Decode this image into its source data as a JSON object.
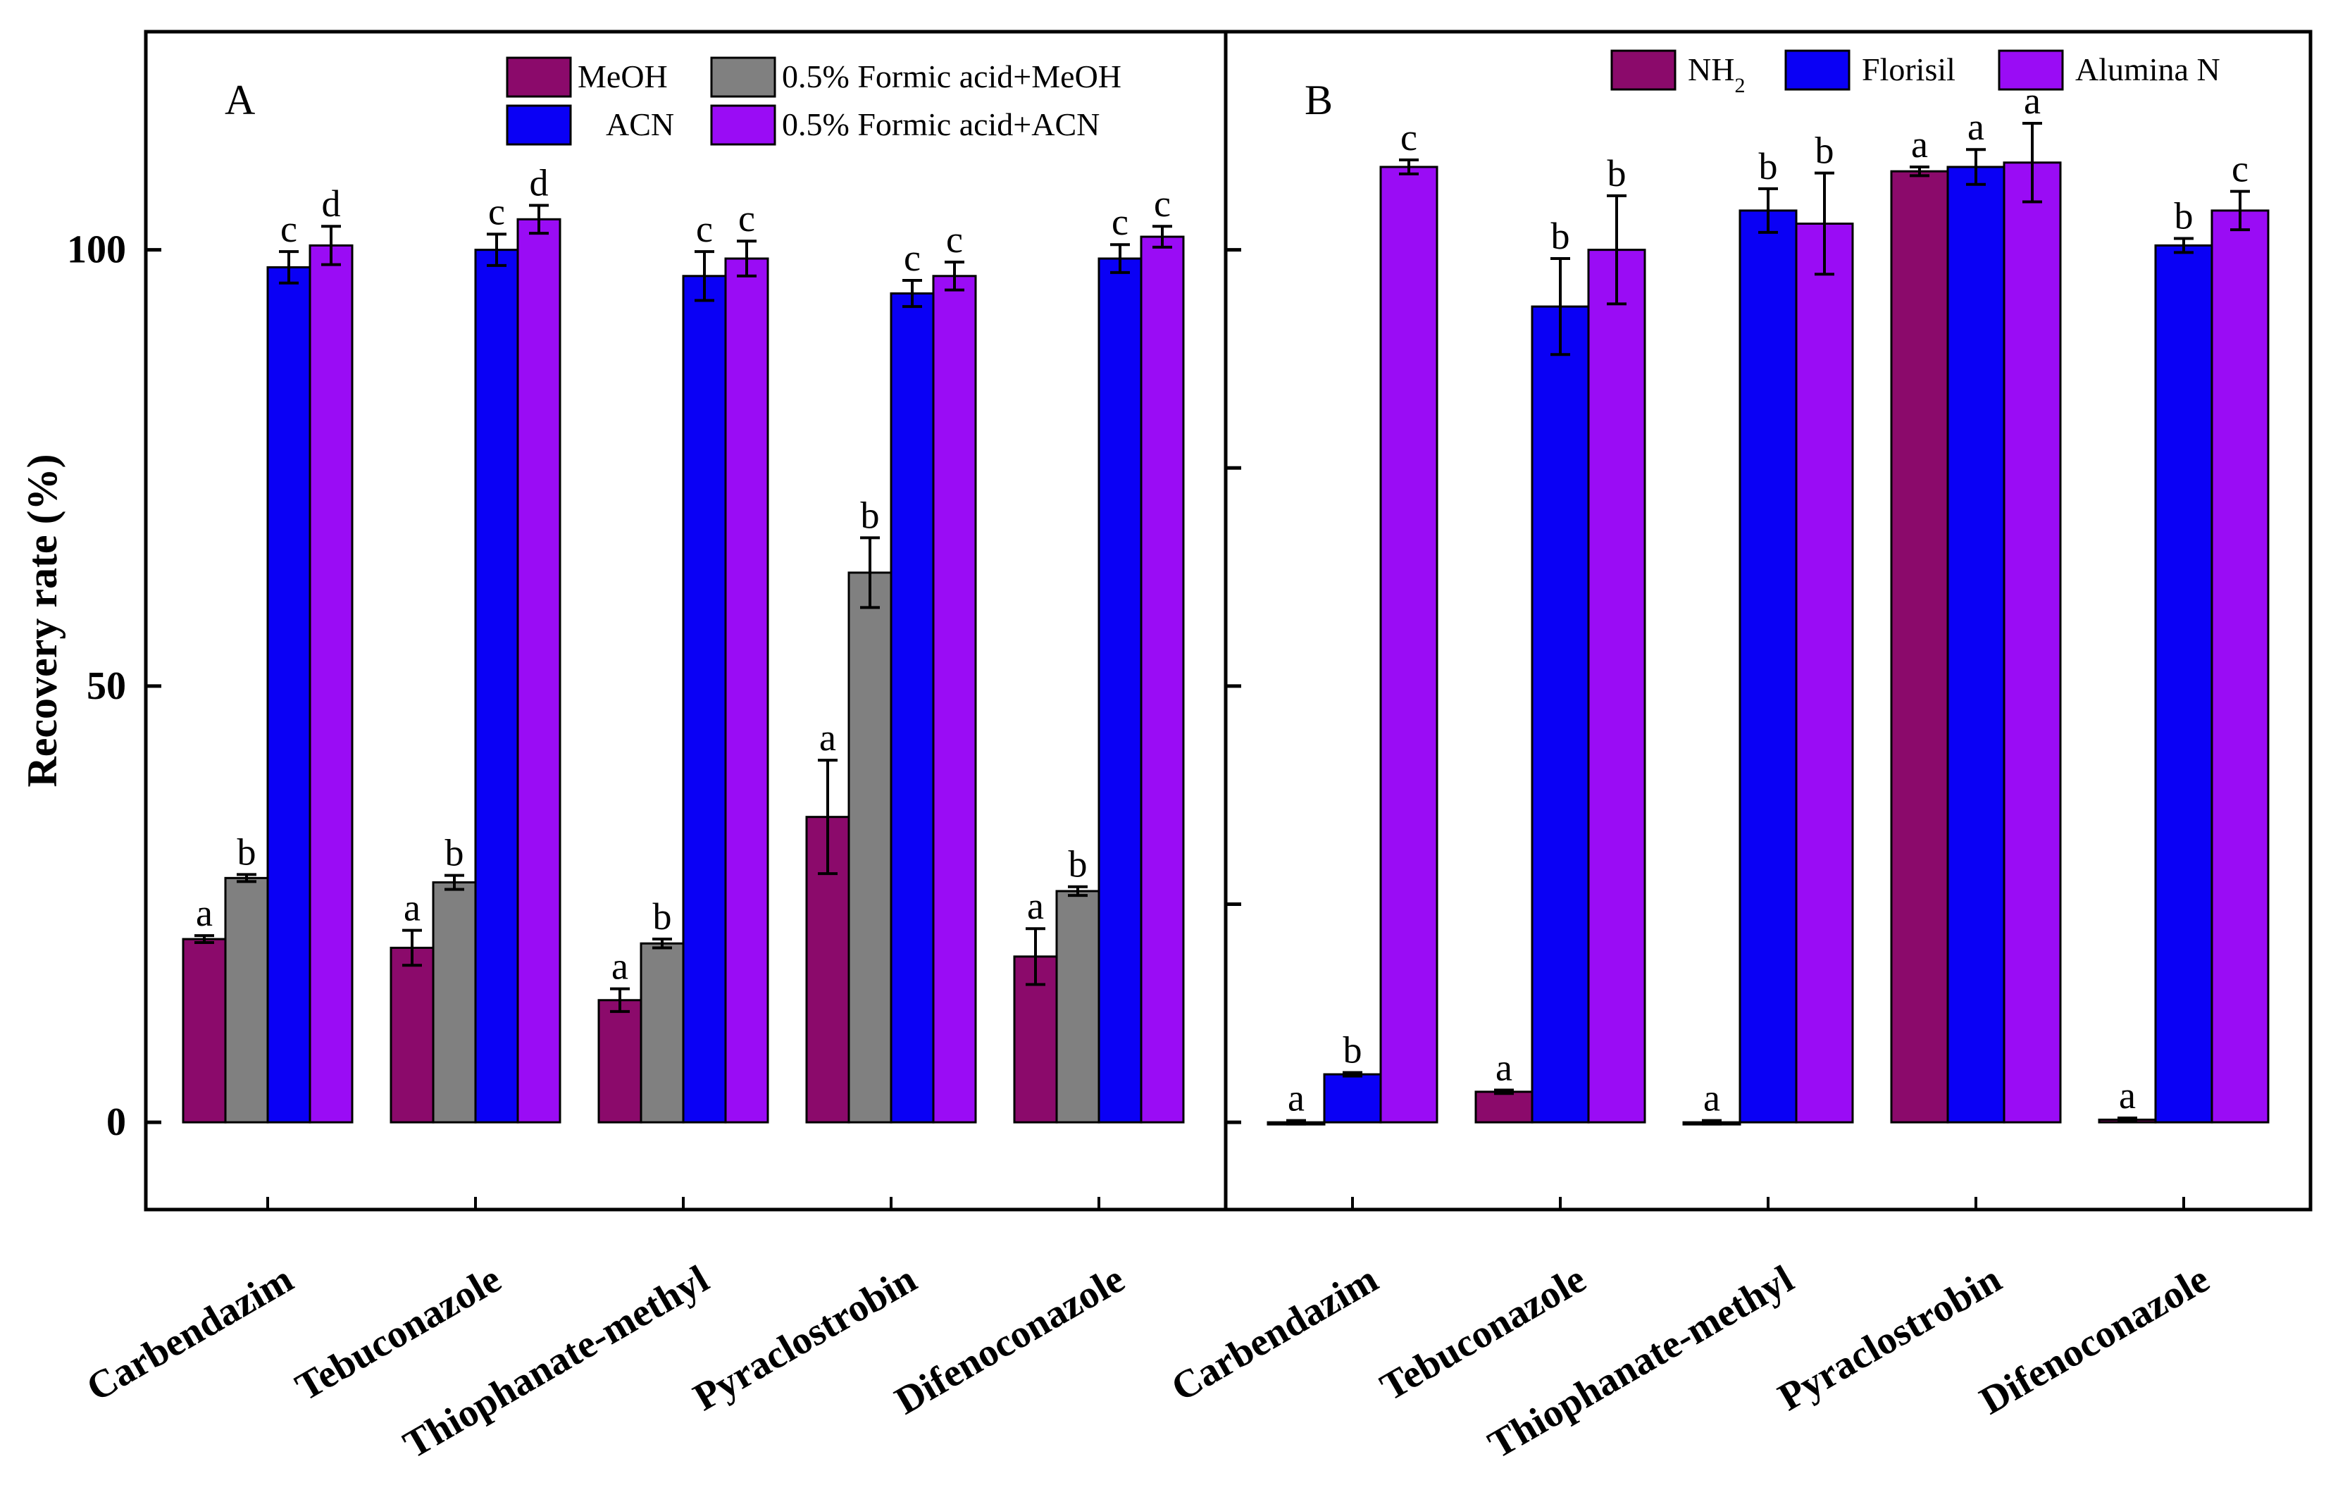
{
  "chart_data": [
    {
      "panel": "A",
      "type": "bar",
      "ylabel": "Recovery rate (%)",
      "ylim": [
        -10,
        125
      ],
      "yticks": [
        0,
        50,
        100
      ],
      "categories": [
        "Carbendazim",
        "Tebuconazole",
        "Thiophanate-methyl",
        "Pyraclostrobin",
        "Difenoconazole"
      ],
      "series": [
        {
          "name": "MeOH",
          "color": "#8b0a6b",
          "values": [
            21,
            20,
            14,
            35,
            19
          ],
          "errors": [
            0.4,
            2,
            1.3,
            6.5,
            3.2
          ],
          "labels": [
            "a",
            "a",
            "a",
            "a",
            "a"
          ]
        },
        {
          "name": "0.5% Formic acid+MeOH",
          "color": "#808080",
          "values": [
            28,
            27.5,
            20.5,
            63,
            26.5
          ],
          "errors": [
            0.4,
            0.8,
            0.5,
            4,
            0.5
          ],
          "labels": [
            "b",
            "b",
            "b",
            "b",
            "b"
          ]
        },
        {
          "name": "ACN",
          "color": "#0a00f5",
          "values": [
            98,
            100,
            97,
            95,
            99
          ],
          "errors": [
            1.8,
            1.8,
            2.8,
            1.5,
            1.6
          ],
          "labels": [
            "c",
            "c",
            "c",
            "c",
            "c"
          ]
        },
        {
          "name": "0.5% Formic acid+ACN",
          "color": "#9a0cf5",
          "values": [
            100.5,
            103.5,
            99,
            97,
            101.5
          ],
          "errors": [
            2.2,
            1.6,
            2,
            1.6,
            1.2
          ],
          "labels": [
            "d",
            "d",
            "c",
            "c",
            "c"
          ]
        }
      ]
    },
    {
      "panel": "B",
      "type": "bar",
      "ylim": [
        -10,
        125
      ],
      "yticks": [
        0,
        25,
        50,
        75,
        100
      ],
      "categories": [
        "Carbendazim",
        "Tebuconazole",
        "Thiophanate-methyl",
        "Pyraclostrobin",
        "Difenoconazole"
      ],
      "series": [
        {
          "name": "NH2",
          "color": "#8b0a6b",
          "values": [
            0,
            3.5,
            0,
            109,
            0.3
          ],
          "errors": [
            0.2,
            0.2,
            0.2,
            0.5,
            0.2
          ],
          "labels": [
            "a",
            "a",
            "a",
            "a",
            "a"
          ]
        },
        {
          "name": "Florisil",
          "color": "#0a00f5",
          "values": [
            5.5,
            93.5,
            104.5,
            109.5,
            100.5
          ],
          "errors": [
            0.2,
            5.5,
            2.5,
            2,
            0.8
          ],
          "labels": [
            "b",
            "b",
            "b",
            "a",
            "b"
          ]
        },
        {
          "name": "Alumina N",
          "color": "#9a0cf5",
          "values": [
            109.5,
            100,
            103,
            110,
            104.5
          ],
          "errors": [
            0.8,
            6.2,
            5.8,
            4.5,
            2.2
          ],
          "labels": [
            "c",
            "b",
            "b",
            "a",
            "c"
          ]
        }
      ]
    }
  ]
}
